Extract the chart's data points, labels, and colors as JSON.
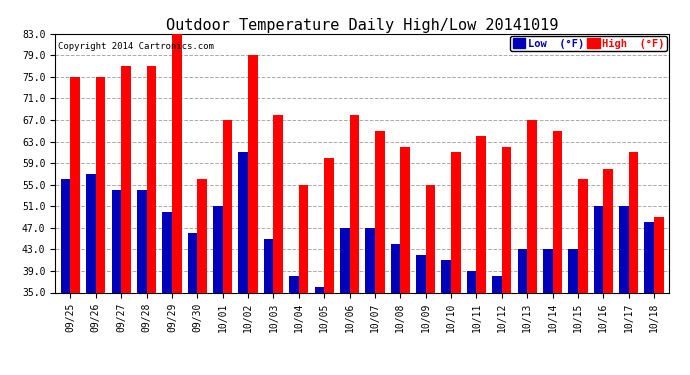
{
  "title": "Outdoor Temperature Daily High/Low 20141019",
  "copyright": "Copyright 2014 Cartronics.com",
  "dates": [
    "09/25",
    "09/26",
    "09/27",
    "09/28",
    "09/29",
    "09/30",
    "10/01",
    "10/02",
    "10/03",
    "10/04",
    "10/05",
    "10/06",
    "10/07",
    "10/08",
    "10/09",
    "10/10",
    "10/11",
    "10/12",
    "10/13",
    "10/14",
    "10/15",
    "10/16",
    "10/17",
    "10/18"
  ],
  "high": [
    75,
    75,
    77,
    77,
    83,
    56,
    67,
    79,
    68,
    55,
    60,
    68,
    65,
    62,
    55,
    61,
    64,
    62,
    67,
    65,
    56,
    58,
    61,
    49
  ],
  "low": [
    56,
    57,
    54,
    54,
    50,
    46,
    51,
    61,
    45,
    38,
    36,
    47,
    47,
    44,
    42,
    41,
    39,
    38,
    43,
    43,
    43,
    51,
    51,
    48
  ],
  "high_color": "#ff0000",
  "low_color": "#0000bb",
  "bg_color": "#ffffff",
  "grid_color": "#aaaaaa",
  "ylim_min": 35.0,
  "ylim_max": 83.0,
  "yticks": [
    35.0,
    39.0,
    43.0,
    47.0,
    51.0,
    55.0,
    59.0,
    63.0,
    67.0,
    71.0,
    75.0,
    79.0,
    83.0
  ],
  "legend_low_label": "Low  (°F)",
  "legend_high_label": "High  (°F)",
  "bar_width": 0.38,
  "title_fontsize": 11,
  "tick_fontsize": 7,
  "copyright_fontsize": 6.5
}
